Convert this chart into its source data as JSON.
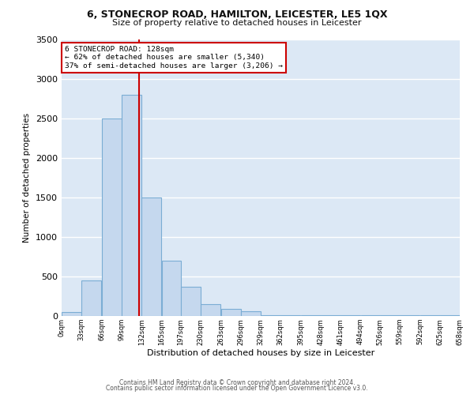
{
  "title1": "6, STONECROP ROAD, HAMILTON, LEICESTER, LE5 1QX",
  "title2": "Size of property relative to detached houses in Leicester",
  "xlabel": "Distribution of detached houses by size in Leicester",
  "ylabel": "Number of detached properties",
  "footer1": "Contains HM Land Registry data © Crown copyright and database right 2024.",
  "footer2": "Contains public sector information licensed under the Open Government Licence v3.0.",
  "annotation_line1": "6 STONECROP ROAD: 128sqm",
  "annotation_line2": "← 62% of detached houses are smaller (5,340)",
  "annotation_line3": "37% of semi-detached houses are larger (3,206) →",
  "property_size": 128,
  "bar_edges": [
    0,
    33,
    66,
    99,
    132,
    165,
    197,
    230,
    263,
    296,
    329,
    362,
    395,
    428,
    461,
    494,
    526,
    559,
    592,
    625,
    658
  ],
  "bar_heights": [
    50,
    450,
    2500,
    2800,
    1500,
    700,
    370,
    150,
    90,
    60,
    15,
    15,
    15,
    15,
    15,
    15,
    15,
    15,
    15,
    15
  ],
  "bar_color": "#c5d8ee",
  "bar_edge_color": "#7badd4",
  "vline_color": "#cc0000",
  "annotation_box_edge": "#cc0000",
  "annotation_box_face": "#ffffff",
  "background_color": "#dce8f5",
  "grid_color": "#ffffff",
  "ylim": [
    0,
    3500
  ],
  "yticks": [
    0,
    500,
    1000,
    1500,
    2000,
    2500,
    3000,
    3500
  ],
  "tick_labels": [
    "0sqm",
    "33sqm",
    "66sqm",
    "99sqm",
    "132sqm",
    "165sqm",
    "197sqm",
    "230sqm",
    "263sqm",
    "296sqm",
    "329sqm",
    "362sqm",
    "395sqm",
    "428sqm",
    "461sqm",
    "494sqm",
    "526sqm",
    "559sqm",
    "592sqm",
    "625sqm",
    "658sqm"
  ]
}
